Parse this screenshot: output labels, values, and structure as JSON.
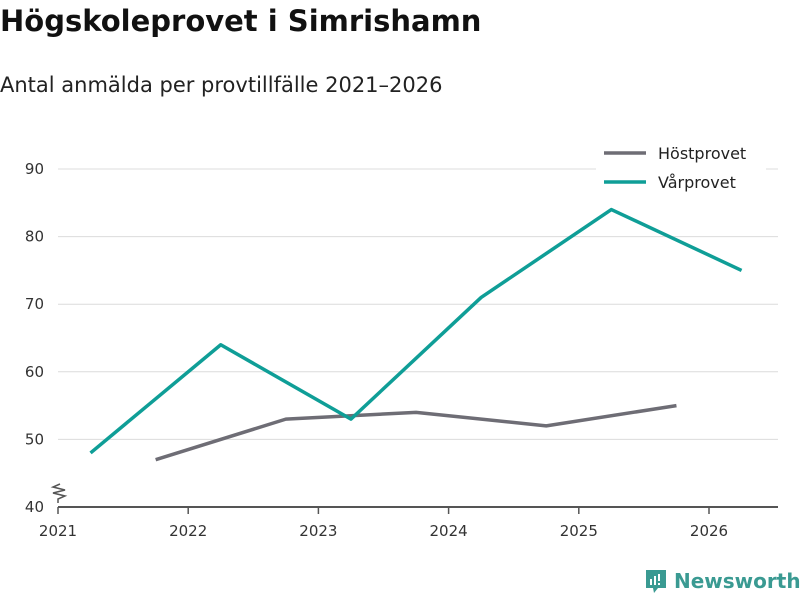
{
  "chart_data": {
    "type": "line",
    "title": "Högskoleprovet i Simrishamn",
    "subtitle": "Antal anmälda per provtillfälle 2021–2026",
    "xlabel": "",
    "ylabel": "",
    "xlim": [
      2021,
      2026.55
    ],
    "ylim": [
      40,
      90
    ],
    "x_ticks": [
      "2021",
      "2022",
      "2023",
      "2024",
      "2025",
      "2026"
    ],
    "y_ticks": [
      "40",
      "50",
      "60",
      "70",
      "80",
      "90"
    ],
    "grid": true,
    "legend_position": "top-right",
    "series": [
      {
        "name": "Höstprovet",
        "color": "#6e6d75",
        "x": [
          2021.75,
          2022.75,
          2023.75,
          2024.75,
          2025.75
        ],
        "values": [
          47,
          53,
          54,
          52,
          55
        ]
      },
      {
        "name": "Vårprovet",
        "color": "#0f9e97",
        "x": [
          2021.25,
          2022.25,
          2023.25,
          2024.25,
          2025.25,
          2026.25
        ],
        "values": [
          48,
          64,
          53,
          71,
          84,
          75
        ]
      }
    ]
  },
  "brand": "Newsworthy"
}
